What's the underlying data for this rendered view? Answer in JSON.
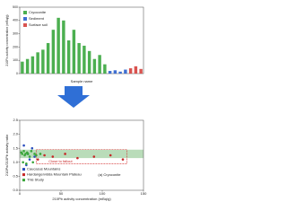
{
  "chart_data": [
    {
      "type": "bar",
      "x_label": "Sample name",
      "y_label": "210Pb activity concentration (mBq/g)",
      "categories": [
        null,
        null,
        null,
        null,
        null,
        null,
        null,
        null,
        null,
        null,
        null,
        null,
        null,
        null,
        null,
        null,
        null,
        null,
        null,
        null,
        null,
        null,
        null,
        null
      ],
      "series": [
        {
          "name": "Cryoconite",
          "color": "#4caf50",
          "values": [
            90,
            110,
            130,
            160,
            180,
            230,
            330,
            420,
            400,
            250,
            330,
            230,
            210,
            170,
            110,
            140,
            70,
            null,
            null,
            null,
            null,
            null,
            null,
            null
          ]
        },
        {
          "name": "Sediment",
          "color": "#3f6fd1",
          "values": [
            null,
            null,
            null,
            null,
            null,
            null,
            null,
            null,
            null,
            null,
            null,
            null,
            null,
            null,
            null,
            null,
            null,
            20,
            25,
            15,
            30,
            null,
            null,
            null
          ]
        },
        {
          "name": "Surface soil",
          "color": "#d9534f",
          "values": [
            null,
            null,
            null,
            null,
            null,
            null,
            null,
            null,
            null,
            null,
            null,
            null,
            null,
            null,
            null,
            null,
            null,
            null,
            null,
            null,
            null,
            40,
            55,
            35
          ]
        }
      ],
      "ylim": [
        0,
        500
      ],
      "yticks": [
        0,
        100,
        200,
        300,
        400,
        500
      ],
      "grid": false
    },
    {
      "type": "scatter",
      "x_label": "210Pb activity concentration (mBq/g)",
      "y_label": "210Po/210Pb activity ratio",
      "annotations": [
        "Close to fallout",
        "(a) Cryoconite"
      ],
      "band": [
        1.15,
        1.45
      ],
      "band_color": "#b9dcb9",
      "series": [
        {
          "name": "Caucasus Mountains",
          "color": "#2c4fbf",
          "x": [
            5,
            8,
            10,
            12,
            15,
            18
          ],
          "y": [
            1.6,
            0.9,
            1.3,
            1.1,
            1.5,
            1.2
          ]
        },
        {
          "name": "Hardangervidda Mountain Plateau",
          "color": "#c62828",
          "x": [
            22,
            30,
            40,
            55,
            70,
            90,
            110,
            125
          ],
          "y": [
            1.1,
            1.25,
            1.2,
            1.3,
            1.15,
            1.2,
            1.25,
            1.1
          ]
        },
        {
          "name": "This Study",
          "color": "#3aa63a",
          "x": [
            2,
            3,
            4,
            5,
            6,
            7,
            8,
            9,
            10,
            12,
            14,
            16,
            18,
            20,
            25
          ],
          "y": [
            1.35,
            1.3,
            1.0,
            1.4,
            1.25,
            1.3,
            0.95,
            1.35,
            1.3,
            1.2,
            1.4,
            1.0,
            1.3,
            1.25,
            1.3
          ]
        }
      ],
      "xlim": [
        0,
        150
      ],
      "xticks": [
        0,
        50,
        100,
        150
      ],
      "ylim": [
        0,
        2.5
      ],
      "yticks": [
        {
          "value": 0,
          "label": "0.0"
        },
        {
          "value": 0.5,
          "label": "0.5"
        },
        {
          "value": 1,
          "label": "1.0"
        },
        {
          "value": 1.5,
          "label": "1.5"
        },
        {
          "value": 2,
          "label": "2.0"
        },
        {
          "value": 2.5,
          "label": "2.5"
        }
      ],
      "legend": "lower-left"
    }
  ]
}
